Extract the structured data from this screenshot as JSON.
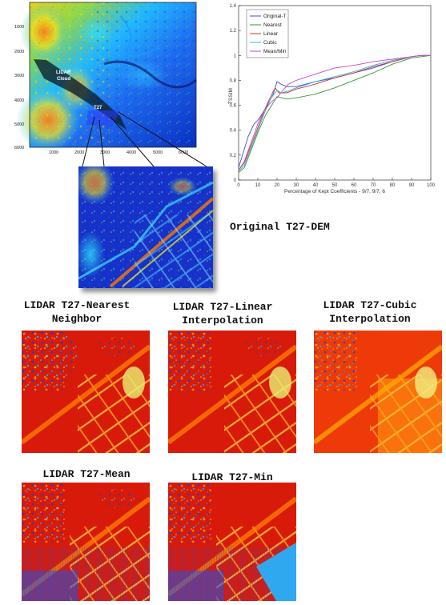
{
  "map_panel": {
    "y_ticks": [
      "1000",
      "2000",
      "3000",
      "4000",
      "5000",
      "6000"
    ],
    "x_ticks": [
      "1000",
      "2000",
      "3000",
      "4000",
      "5000",
      "6000"
    ],
    "cloud_label_line1": "LIDAR",
    "cloud_label_line2": "Cloud",
    "tile_label": "T27"
  },
  "caption_original": "Original T27-DEM",
  "results": [
    {
      "line1": "LIDAR T27-Nearest",
      "line2": "Neighbor"
    },
    {
      "line1": "LIDAR T27-Linear",
      "line2": "Interpolation"
    },
    {
      "line1": "LIDAR T27-Cubic",
      "line2": "Interpolation"
    },
    {
      "line1": "LIDAR T27-Mean",
      "line2": ""
    },
    {
      "line1": "LIDAR T27-Min",
      "line2": ""
    }
  ],
  "chart_data": {
    "type": "line",
    "xlabel": "Percentage of Kept Coefficients - 9/7, 9/7, 6",
    "ylabel": "TSSIM",
    "xlim": [
      0,
      100
    ],
    "ylim": [
      0,
      1.4
    ],
    "x_ticks": [
      0,
      10,
      20,
      30,
      40,
      50,
      60,
      70,
      80,
      90,
      100
    ],
    "y_ticks": [
      0,
      0.2,
      0.4,
      0.6,
      0.8,
      1,
      1.2,
      1.4
    ],
    "grid": false,
    "legend_position": "top-left",
    "series": [
      {
        "name": "Original-T",
        "color": "#3b4fd8",
        "x": [
          0,
          2,
          5,
          8,
          10,
          13,
          16,
          18,
          20,
          22,
          25,
          30,
          40,
          50,
          60,
          70,
          80,
          90,
          95,
          100
        ],
        "y": [
          0.1,
          0.2,
          0.35,
          0.45,
          0.48,
          0.55,
          0.63,
          0.69,
          0.79,
          0.77,
          0.75,
          0.75,
          0.79,
          0.82,
          0.86,
          0.9,
          0.95,
          0.99,
          1.0,
          1.0
        ]
      },
      {
        "name": "Nearest",
        "color": "#2e9a2e",
        "x": [
          0,
          3,
          6,
          10,
          14,
          18,
          20,
          25,
          30,
          40,
          50,
          60,
          70,
          80,
          90,
          95,
          100
        ],
        "y": [
          0.06,
          0.1,
          0.22,
          0.38,
          0.52,
          0.62,
          0.67,
          0.65,
          0.66,
          0.69,
          0.74,
          0.8,
          0.86,
          0.93,
          0.98,
          0.99,
          1.0
        ]
      },
      {
        "name": "Linear",
        "color": "#d83030",
        "x": [
          0,
          3,
          6,
          10,
          14,
          17,
          19,
          21,
          25,
          30,
          40,
          50,
          60,
          70,
          80,
          90,
          95,
          100
        ],
        "y": [
          0.08,
          0.14,
          0.26,
          0.42,
          0.58,
          0.68,
          0.74,
          0.7,
          0.7,
          0.73,
          0.77,
          0.82,
          0.86,
          0.91,
          0.95,
          0.99,
          1.0,
          1.0
        ]
      },
      {
        "name": "Cubic",
        "color": "#2ab8c8",
        "x": [
          0,
          3,
          6,
          10,
          14,
          17,
          20,
          22,
          25,
          30,
          40,
          50,
          60,
          70,
          80,
          90,
          95,
          100
        ],
        "y": [
          0.07,
          0.12,
          0.24,
          0.4,
          0.56,
          0.66,
          0.72,
          0.7,
          0.71,
          0.74,
          0.79,
          0.83,
          0.87,
          0.92,
          0.96,
          0.99,
          1.0,
          1.0
        ]
      },
      {
        "name": "Mean/Min",
        "color": "#cc44cc",
        "x": [
          0,
          3,
          6,
          10,
          13,
          16,
          18,
          20,
          23,
          26,
          30,
          40,
          50,
          60,
          70,
          80,
          90,
          95,
          100
        ],
        "y": [
          0.08,
          0.15,
          0.28,
          0.45,
          0.55,
          0.61,
          0.64,
          0.66,
          0.72,
          0.77,
          0.8,
          0.85,
          0.9,
          0.92,
          0.95,
          0.97,
          0.99,
          1.0,
          1.0
        ]
      }
    ]
  }
}
